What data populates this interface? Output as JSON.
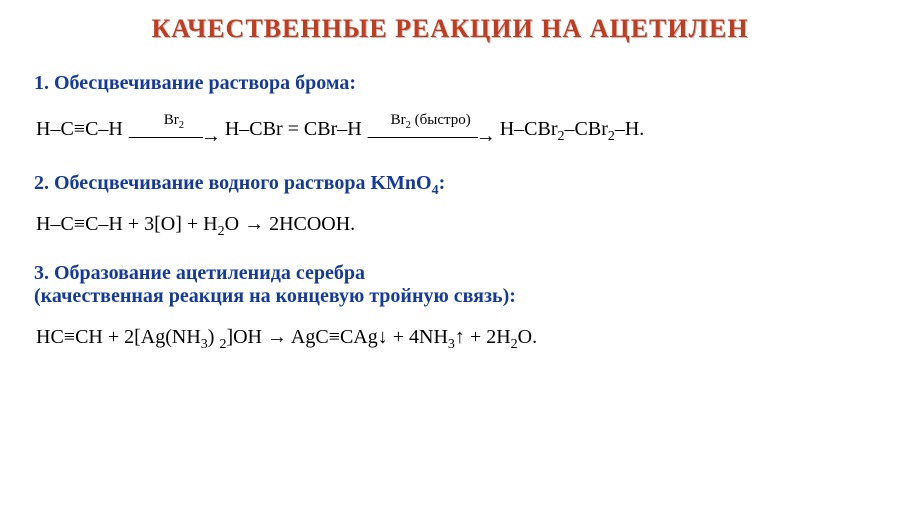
{
  "colors": {
    "title": "#c43b1d",
    "heading": "#143a9c",
    "body": "#000000",
    "background": "#ffffff"
  },
  "fontsizes": {
    "title": 26,
    "heading": 20,
    "body": 20,
    "arrow_label": 15
  },
  "title": "КАЧЕСТВЕННЫЕ РЕАКЦИИ НА АЦЕТИЛЕН",
  "section1": {
    "heading": "1. Обесцвечивание раствора брома:",
    "eq": {
      "r1": "H–C≡C–H",
      "lab1a": "Br",
      "lab1b": "2",
      "mid1a": "H–CBr = CBr–H",
      "lab2a": "Br",
      "lab2b": "2",
      "lab2c": "   (быстро)",
      "end1": "H–CBr",
      "end2": "2",
      "end3": "–CBr",
      "end4": "2",
      "end5": "–H."
    }
  },
  "section2": {
    "heading_a": "2. Обесцвечивание водного раствора KMnO",
    "heading_b": "4",
    "heading_c": ":",
    "eq": {
      "p1": "H–C≡C–H  +  3[O]  +  H",
      "p2": "2",
      "p3": "O   →   2HCOOH."
    }
  },
  "section3": {
    "heading_line1": "3. Образование ацетиленида серебра",
    "heading_line2": "(качественная реакция на концевую тройную связь):",
    "eq": {
      "q1": "HC≡CH  +  2[Ag(NH",
      "q2": "3",
      "q3": ") ",
      "q4": "2",
      "q5": "]OH   →   AgC≡CAg↓  +  4NH",
      "q6": "3",
      "q7": "↑  +  2H",
      "q8": "2",
      "q9": "O."
    }
  }
}
